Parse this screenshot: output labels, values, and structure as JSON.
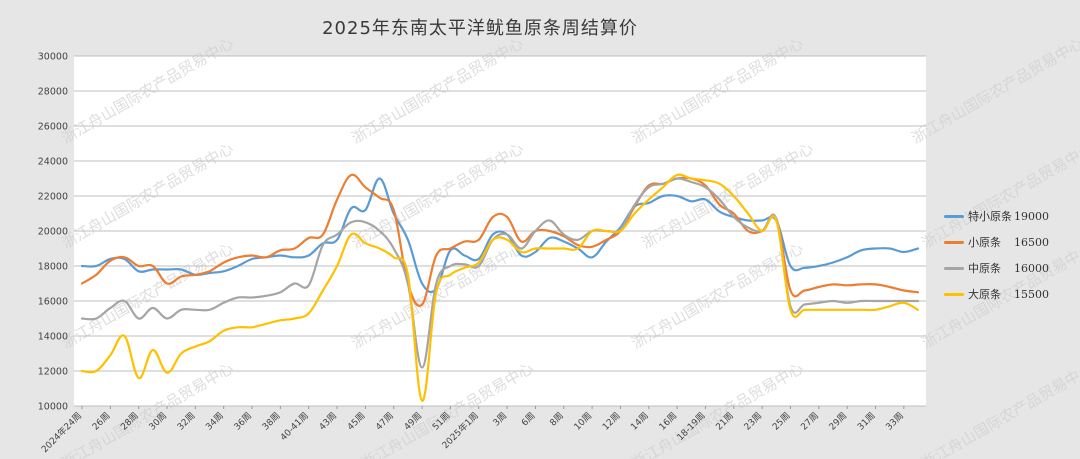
{
  "colors": {
    "background": "#e6e6e6",
    "plot_background": "#ffffff",
    "grid": "#bfbfbf",
    "watermark": "#cfcfcf"
  },
  "watermark_text": "浙江舟山国际农产品贸易中心",
  "chart_data": {
    "type": "line",
    "title": "2025年东南太平洋鱿鱼原条周结算价",
    "ylim": [
      10000,
      30000
    ],
    "y_ticks": [
      10000,
      12000,
      14000,
      16000,
      18000,
      20000,
      22000,
      24000,
      26000,
      28000,
      30000
    ],
    "x_tick_labels": [
      "2024年24周",
      "26周",
      "28周",
      "30周",
      "32周",
      "34周",
      "36周",
      "38周",
      "40-41周",
      "43周",
      "45周",
      "47周",
      "49周",
      "51周",
      "2025年1周",
      "3周",
      "6周",
      "8周",
      "10周",
      "12周",
      "14周",
      "16周",
      "18-19周",
      "21周",
      "23周",
      "25周",
      "27周",
      "29周",
      "31周",
      "33周"
    ],
    "grid": true,
    "legend_position": "right",
    "series": [
      {
        "name": "特小原条",
        "legend_value": "19000",
        "color": "#5b9bd5",
        "values": [
          18000,
          18000,
          18400,
          18400,
          17700,
          17800,
          17800,
          17800,
          17500,
          17600,
          17700,
          18000,
          18400,
          18500,
          18600,
          18500,
          18600,
          19300,
          19500,
          21300,
          21200,
          23000,
          21000,
          19500,
          17000,
          16700,
          18900,
          18600,
          18400,
          19800,
          19800,
          18600,
          18800,
          19600,
          19400,
          19000,
          18500,
          19400,
          20200,
          21400,
          21600,
          22000,
          22000,
          21700,
          21800,
          21100,
          20800,
          20600,
          20600,
          20600,
          18000,
          17900,
          18000,
          18200,
          18500,
          18900,
          19000,
          19000,
          18800,
          19000
        ]
      },
      {
        "name": "小原条",
        "legend_value": "16500",
        "color": "#ed7d31",
        "values": [
          17000,
          17500,
          18300,
          18500,
          18000,
          18000,
          17000,
          17400,
          17500,
          17700,
          18200,
          18500,
          18600,
          18500,
          18900,
          19000,
          19600,
          19800,
          21800,
          23200,
          22500,
          21900,
          21200,
          17000,
          15800,
          18600,
          19000,
          19400,
          19500,
          20800,
          20800,
          19400,
          20000,
          20000,
          19700,
          19200,
          19100,
          19500,
          20000,
          21400,
          22600,
          22700,
          23000,
          23000,
          22600,
          21500,
          21000,
          20000,
          20000,
          20700,
          16600,
          16600,
          16800,
          16950,
          16900,
          16950,
          16950,
          16800,
          16600,
          16500
        ]
      },
      {
        "name": "中原条",
        "legend_value": "16000",
        "color": "#a5a5a5",
        "values": [
          15000,
          15000,
          15600,
          16000,
          15000,
          15600,
          15000,
          15500,
          15500,
          15500,
          15900,
          16200,
          16200,
          16300,
          16500,
          17000,
          16900,
          19200,
          19800,
          20500,
          20500,
          20000,
          19000,
          17000,
          12200,
          17000,
          18000,
          18100,
          18000,
          19500,
          19800,
          19000,
          20000,
          20600,
          19800,
          19500,
          20000,
          20000,
          20100,
          21500,
          22500,
          22700,
          23000,
          22800,
          22500,
          21800,
          20800,
          20200,
          20000,
          20700,
          15700,
          15800,
          15900,
          16000,
          15900,
          16000,
          16000,
          16000,
          16000,
          16000
        ]
      },
      {
        "name": "大原条",
        "legend_value": "15500",
        "color": "#ffc000",
        "values": [
          12000,
          12000,
          12900,
          14000,
          11600,
          13200,
          11900,
          13000,
          13400,
          13700,
          14300,
          14500,
          14500,
          14700,
          14900,
          15000,
          15300,
          16600,
          18000,
          19800,
          19300,
          19000,
          18500,
          17500,
          10300,
          16500,
          17500,
          17900,
          18200,
          19500,
          19500,
          18800,
          19000,
          19000,
          19000,
          19000,
          20000,
          20000,
          20000,
          21000,
          21800,
          22500,
          23200,
          23000,
          22900,
          22700,
          22000,
          21000,
          20000,
          20600,
          15500,
          15500,
          15500,
          15500,
          15500,
          15500,
          15500,
          15700,
          15900,
          15500
        ]
      }
    ]
  }
}
